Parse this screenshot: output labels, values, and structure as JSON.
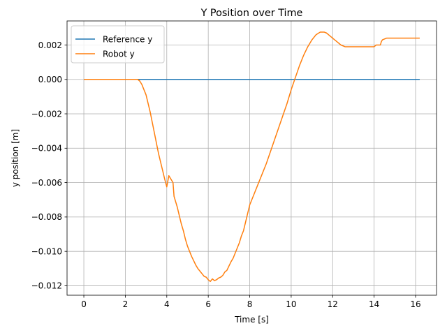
{
  "chart_data": {
    "type": "line",
    "title": "Y Position over Time",
    "xlabel": "Time [s]",
    "ylabel": "y position [m]",
    "xlim": [
      -0.81,
      17.01
    ],
    "ylim": [
      -0.01255,
      0.0034
    ],
    "grid": true,
    "legend_position": "top-left",
    "x_ticks": [
      0,
      2,
      4,
      6,
      8,
      10,
      12,
      14,
      16
    ],
    "x_tick_labels": [
      "0",
      "2",
      "4",
      "6",
      "8",
      "10",
      "12",
      "14",
      "16"
    ],
    "y_ticks": [
      0.002,
      0.0,
      -0.002,
      -0.004,
      -0.006,
      -0.008,
      -0.01,
      -0.012
    ],
    "y_tick_labels": [
      "0.002",
      "0.000",
      "−0.002",
      "−0.004",
      "−0.006",
      "−0.008",
      "−0.010",
      "−0.012"
    ],
    "series": [
      {
        "name": "Reference y",
        "color": "#1f77b4",
        "x": [
          0,
          16.2
        ],
        "y": [
          0,
          0
        ]
      },
      {
        "name": "Robot y",
        "color": "#ff7f0e",
        "x": [
          0,
          2.5,
          2.6,
          2.7,
          2.8,
          2.9,
          3.0,
          3.1,
          3.2,
          3.3,
          3.4,
          3.5,
          3.6,
          3.7,
          3.8,
          3.9,
          4.0,
          4.1,
          4.2,
          4.25,
          4.3,
          4.35,
          4.4,
          4.5,
          4.6,
          4.7,
          4.8,
          4.9,
          5.0,
          5.1,
          5.2,
          5.3,
          5.4,
          5.5,
          5.6,
          5.7,
          5.8,
          5.9,
          6.0,
          6.1,
          6.2,
          6.3,
          6.4,
          6.5,
          6.6,
          6.7,
          6.8,
          6.9,
          7.0,
          7.1,
          7.2,
          7.3,
          7.4,
          7.5,
          7.6,
          7.7,
          7.8,
          7.9,
          8.0,
          8.2,
          8.4,
          8.6,
          8.8,
          9.0,
          9.2,
          9.4,
          9.6,
          9.8,
          10.0,
          10.2,
          10.4,
          10.6,
          10.8,
          11.0,
          11.2,
          11.4,
          11.6,
          11.7,
          11.8,
          12.0,
          12.2,
          12.4,
          12.6,
          12.8,
          13.0,
          13.2,
          13.4,
          13.6,
          13.8,
          14.0,
          14.1,
          14.2,
          14.3,
          14.35,
          14.4,
          14.6,
          14.8,
          15.0,
          15.2,
          15.4,
          15.6,
          15.8,
          16.0,
          16.2
        ],
        "y": [
          0,
          0,
          0,
          -0.0001,
          -0.0003,
          -0.0006,
          -0.0009,
          -0.0014,
          -0.0019,
          -0.0025,
          -0.0031,
          -0.0037,
          -0.0043,
          -0.0048,
          -0.0053,
          -0.0058,
          -0.00625,
          -0.0056,
          -0.0058,
          -0.0059,
          -0.006,
          -0.0068,
          -0.007,
          -0.0074,
          -0.0079,
          -0.0084,
          -0.0088,
          -0.0093,
          -0.0097,
          -0.01,
          -0.0103,
          -0.01055,
          -0.0108,
          -0.011,
          -0.01115,
          -0.0113,
          -0.01145,
          -0.0115,
          -0.01165,
          -0.01175,
          -0.0116,
          -0.0117,
          -0.01165,
          -0.01155,
          -0.0115,
          -0.0114,
          -0.0112,
          -0.0111,
          -0.01085,
          -0.0106,
          -0.0104,
          -0.0101,
          -0.0098,
          -0.0095,
          -0.0091,
          -0.0088,
          -0.0083,
          -0.0078,
          -0.0073,
          -0.0067,
          -0.0061,
          -0.0055,
          -0.0049,
          -0.0042,
          -0.0035,
          -0.0028,
          -0.0021,
          -0.0014,
          -0.0006,
          0.0001,
          0.0008,
          0.0014,
          0.0019,
          0.0023,
          0.0026,
          0.00275,
          0.00275,
          0.0027,
          0.0026,
          0.0024,
          0.0022,
          0.002,
          0.0019,
          0.0019,
          0.0019,
          0.0019,
          0.0019,
          0.0019,
          0.0019,
          0.0019,
          0.002,
          0.002,
          0.002,
          0.0022,
          0.0023,
          0.0024,
          0.0024,
          0.0024,
          0.0024,
          0.0024,
          0.0024,
          0.0024,
          0.0024,
          0.0024
        ]
      }
    ]
  }
}
